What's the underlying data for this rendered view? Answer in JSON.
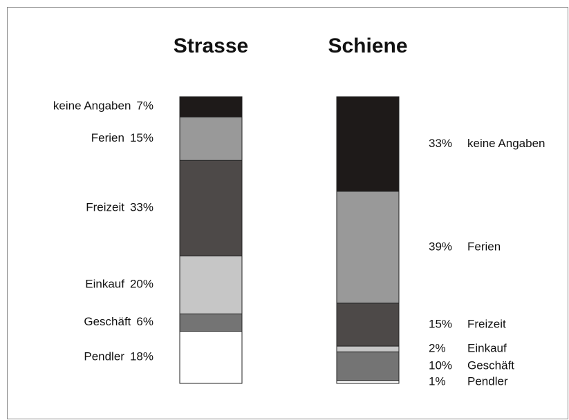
{
  "chart_data": {
    "type": "bar",
    "stacked": true,
    "categories": [
      "Strasse",
      "Schiene"
    ],
    "series": [
      {
        "name": "Pendler",
        "color": "#ffffff",
        "values": [
          18,
          1
        ],
        "value_labels": [
          "18%",
          "1%"
        ]
      },
      {
        "name": "Geschäft",
        "color": "#747474",
        "values": [
          6,
          10
        ],
        "value_labels": [
          "6%",
          "10%"
        ]
      },
      {
        "name": "Einkauf",
        "color": "#c6c6c6",
        "values": [
          20,
          2
        ],
        "value_labels": [
          "20%",
          "2%"
        ]
      },
      {
        "name": "Freizeit",
        "color": "#4d4948",
        "values": [
          33,
          15
        ],
        "value_labels": [
          "33%",
          "15%"
        ]
      },
      {
        "name": "Ferien",
        "color": "#999999",
        "values": [
          15,
          39
        ],
        "value_labels": [
          "15%",
          "39%"
        ]
      },
      {
        "name": "keine Angaben",
        "color": "#1e1a19",
        "values": [
          7,
          33
        ],
        "value_labels": [
          "7%",
          "33%"
        ]
      }
    ]
  }
}
